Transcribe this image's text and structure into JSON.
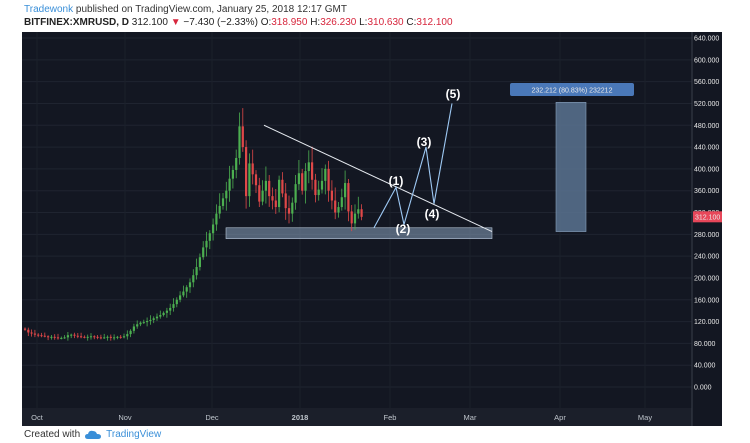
{
  "header": {
    "author": "Tradewonk",
    "published": "published on TradingView.com, January 25, 2018 12:17 GMT",
    "symbol": "BITFINEX:XMRUSD, D",
    "price": "312.100",
    "change_arrow": "▼",
    "change": "−7.430 (−2.33%)",
    "o_label": "O:",
    "o_val": "318.950",
    "h_label": "H:",
    "h_val": "326.230",
    "l_label": "L:",
    "l_val": "310.630",
    "c_label": "C:",
    "c_val": "312.100"
  },
  "footer": {
    "created_with": "Created with",
    "brand": "TradingView"
  },
  "colors": {
    "background": "#131722",
    "up": "#4caf50",
    "down": "#e04848",
    "accent": "#3a8fd8",
    "box": "#5b7391",
    "price_tag": "#e8475a"
  },
  "chart_data": {
    "type": "candlestick",
    "y_ticks": [
      "640.000",
      "600.000",
      "560.000",
      "520.000",
      "480.000",
      "440.000",
      "400.000",
      "360.000",
      "320.000",
      "280.000",
      "240.000",
      "200.000",
      "160.000",
      "120.000",
      "80.000",
      "40.000",
      "0.000"
    ],
    "ylim": [
      0,
      640
    ],
    "x_ticks": [
      "Oct",
      "Nov",
      "Dec",
      "2018",
      "Feb",
      "Mar",
      "Apr",
      "May"
    ],
    "last_price_tag": "312.100",
    "measure_label": "232.212 (80.83%) 232212",
    "wave_labels": [
      "(1)",
      "(2)",
      "(3)",
      "(4)",
      "(5)"
    ],
    "closes": [
      105,
      100,
      98,
      96,
      95,
      94,
      93,
      92,
      92,
      91,
      90,
      90,
      91,
      95,
      96,
      94,
      93,
      92,
      91,
      92,
      93,
      92,
      91,
      90,
      91,
      92,
      90,
      91,
      92,
      91,
      93,
      97,
      103,
      111,
      115,
      118,
      119,
      121,
      123,
      126,
      129,
      132,
      136,
      140,
      145,
      152,
      160,
      168,
      175,
      183,
      192,
      205,
      220,
      238,
      256,
      268,
      282,
      298,
      318,
      332,
      346,
      360,
      382,
      398,
      420,
      478,
      440,
      350,
      410,
      390,
      370,
      340,
      360,
      378,
      350,
      342,
      330,
      380,
      355,
      328,
      318,
      338,
      372,
      392,
      360,
      396,
      412,
      380,
      352,
      362,
      378,
      400,
      360,
      342,
      320,
      330,
      348,
      374,
      322,
      300,
      318,
      326,
      312
    ],
    "annotations": {
      "support_zone": [
        272,
        292
      ],
      "triangle_top_start": 480,
      "triangle_apex": 285,
      "measure_box": [
        285,
        522
      ]
    }
  }
}
